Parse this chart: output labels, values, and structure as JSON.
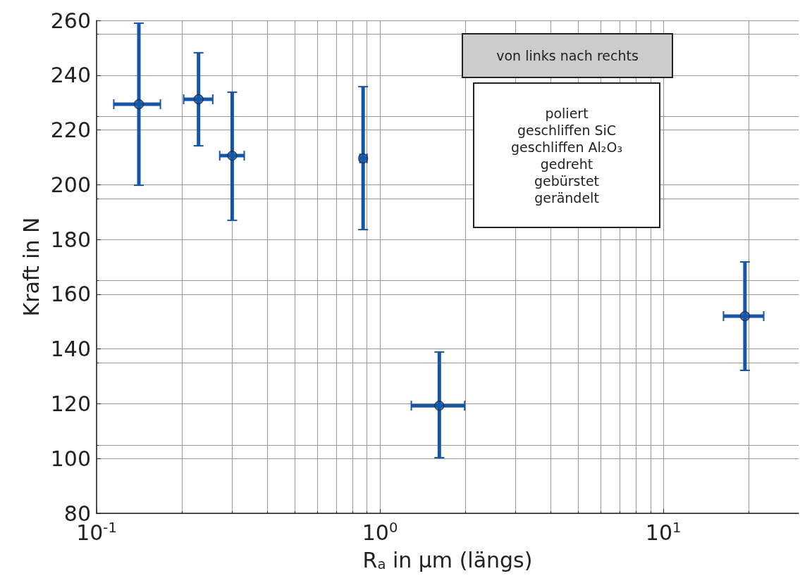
{
  "chart_data": {
    "type": "scatter",
    "xlabel": "R$_{a}$ in μm (längs)",
    "ylabel": "Kraft in N",
    "annotations": [
      "von links nach rechts",
      "poliert\ngeschliffen SiC\ngeschliffen Al₂O₃\ngedreht\ngebürstet\ngerändelt"
    ],
    "x": [
      0.141,
      0.229,
      0.301,
      0.872,
      1.62,
      19.4
    ],
    "series": [
      {
        "color": "#1656a8",
        "values": [
          229.4,
          231.2,
          210.6,
          209.6,
          119.3,
          152
        ],
        "errors": [
          [
            199.8,
            259
          ],
          [
            214.2,
            248.2
          ],
          [
            187,
            233.8
          ],
          [
            183.6,
            235.8
          ],
          [
            100.3,
            138.9
          ],
          [
            132.2,
            171.8
          ]
        ],
        "xerrors": [
          [
            0.115,
            0.168
          ],
          [
            0.203,
            0.257
          ],
          [
            0.272,
            0.332
          ],
          [
            0.85,
            0.9
          ],
          [
            1.29,
            1.99
          ],
          [
            16.3,
            22.6
          ]
        ]
      }
    ],
    "log": "x",
    "xlim": [
      0.1,
      30
    ],
    "ylim": [
      80,
      260
    ],
    "xticks": [
      {
        "value": 0.1,
        "label": "10$^{-1}$"
      },
      {
        "value": 1,
        "label": "10$^{0}$"
      },
      {
        "value": 10,
        "label": "10$^{1}$"
      }
    ],
    "yticks": [
      80,
      100,
      120,
      140,
      160,
      180,
      200,
      220,
      240,
      260
    ],
    "grid": true,
    "marker": "circle"
  }
}
